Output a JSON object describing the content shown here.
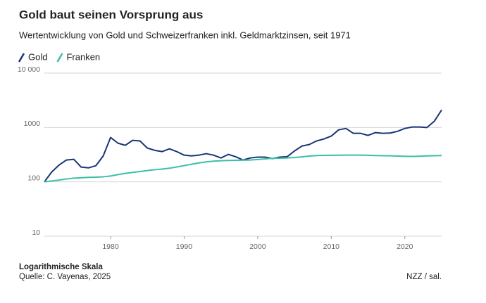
{
  "chart_data": {
    "type": "line",
    "title": "Gold baut seinen Vorsprung aus",
    "subtitle": "Wertentwicklung von Gold und Schweizerfranken inkl. Geldmarktzinsen, seit 1971",
    "note": "Logarithmische Skala",
    "source": "Quelle: C. Vayenas, 2025",
    "credit": "NZZ / sal.",
    "x": [
      1971,
      1972,
      1973,
      1974,
      1975,
      1976,
      1977,
      1978,
      1979,
      1980,
      1981,
      1982,
      1983,
      1984,
      1985,
      1986,
      1987,
      1988,
      1989,
      1990,
      1991,
      1992,
      1993,
      1994,
      1995,
      1996,
      1997,
      1998,
      1999,
      2000,
      2001,
      2002,
      2003,
      2004,
      2005,
      2006,
      2007,
      2008,
      2009,
      2010,
      2011,
      2012,
      2013,
      2014,
      2015,
      2016,
      2017,
      2018,
      2019,
      2020,
      2021,
      2022,
      2023,
      2024,
      2025
    ],
    "series": [
      {
        "name": "Gold",
        "color": "#1b3577",
        "values": [
          100,
          152,
          204,
          252,
          260,
          187,
          181,
          198,
          300,
          655,
          515,
          470,
          580,
          565,
          418,
          380,
          360,
          405,
          360,
          310,
          300,
          310,
          330,
          310,
          275,
          320,
          290,
          252,
          275,
          285,
          285,
          268,
          285,
          290,
          370,
          455,
          485,
          565,
          615,
          695,
          905,
          960,
          780,
          780,
          715,
          805,
          780,
          790,
          850,
          960,
          1020,
          1020,
          1000,
          1300,
          2100
        ]
      },
      {
        "name": "Franken",
        "color": "#3bbfa7",
        "values": [
          100,
          104,
          108,
          113,
          117,
          119,
          121,
          122,
          124,
          128,
          136,
          143,
          149,
          155,
          161,
          167,
          172,
          178,
          188,
          199,
          211,
          223,
          233,
          240,
          245,
          247,
          249,
          250,
          252,
          258,
          265,
          270,
          273,
          276,
          280,
          288,
          298,
          305,
          307,
          308,
          309,
          310,
          310,
          310,
          308,
          305,
          303,
          301,
          298,
          295,
          293,
          296,
          300,
          303,
          305
        ]
      }
    ],
    "xlim": [
      1971,
      2025
    ],
    "xticks": [
      1980,
      1990,
      2000,
      2010,
      2020
    ],
    "ylim": [
      10,
      10000
    ],
    "yticks": [
      10,
      100,
      1000,
      {
        "value": 10000,
        "label": "10 000"
      }
    ],
    "yscale": "log",
    "grid": true
  }
}
